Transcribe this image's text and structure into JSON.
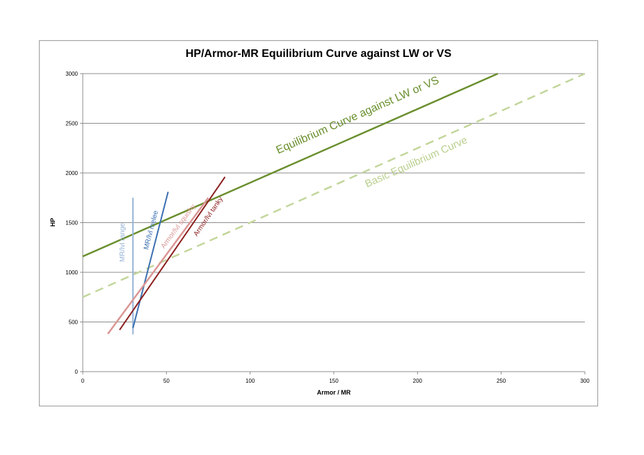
{
  "chart_data": {
    "type": "line",
    "title": "HP/Armor-MR Equilibrium Curve against LW or VS",
    "xlabel": "Armor / MR",
    "ylabel": "HP",
    "xlim": [
      0,
      300
    ],
    "ylim": [
      0,
      3000
    ],
    "xticks": [
      0,
      50,
      100,
      150,
      200,
      250,
      300
    ],
    "yticks": [
      0,
      500,
      1000,
      1500,
      2000,
      2500,
      3000
    ],
    "grid": "horizontal",
    "series": [
      {
        "name": "Equilibrium Curve against LW or VS",
        "color": "#6a8f2e",
        "dash": false,
        "width": 2.5,
        "x": [
          0,
          248
        ],
        "y": [
          1160,
          3000
        ],
        "label": {
          "x": 165,
          "y": 2550,
          "color": "#6a8f2e",
          "size": 16
        }
      },
      {
        "name": "Basic Equilibrium Curve",
        "color": "#c3d69b",
        "dash": true,
        "width": 2.5,
        "x": [
          0,
          300
        ],
        "y": [
          750,
          3000
        ],
        "label": {
          "x": 200,
          "y": 2080,
          "color": "#b9cf8e",
          "size": 15
        }
      },
      {
        "name": "MR/lvl range",
        "color": "#95b3d7",
        "dash": false,
        "width": 2,
        "x": [
          30,
          30
        ],
        "y": [
          375,
          1750
        ],
        "label": {
          "x": 25,
          "y": 1300,
          "color": "#95b3d7",
          "size": 10
        }
      },
      {
        "name": "MR/lvl melee",
        "color": "#3a6fb0",
        "dash": false,
        "width": 2,
        "x": [
          30,
          51
        ],
        "y": [
          440,
          1810
        ],
        "label": {
          "x": 42,
          "y": 1420,
          "color": "#3a6fb0",
          "size": 10
        }
      },
      {
        "name": "Armor/lvl squishy",
        "color": "#d99694",
        "dash": false,
        "width": 2.5,
        "x": [
          15,
          75
        ],
        "y": [
          380,
          1750
        ],
        "label": {
          "x": 58,
          "y": 1450,
          "color": "#d99694",
          "size": 10
        }
      },
      {
        "name": "Armor/lvl tanky",
        "color": "#8b1e1e",
        "dash": false,
        "width": 2,
        "x": [
          22,
          85
        ],
        "y": [
          420,
          1960
        ],
        "label": {
          "x": 76,
          "y": 1550,
          "color": "#8b1e1e",
          "size": 10
        }
      }
    ]
  }
}
